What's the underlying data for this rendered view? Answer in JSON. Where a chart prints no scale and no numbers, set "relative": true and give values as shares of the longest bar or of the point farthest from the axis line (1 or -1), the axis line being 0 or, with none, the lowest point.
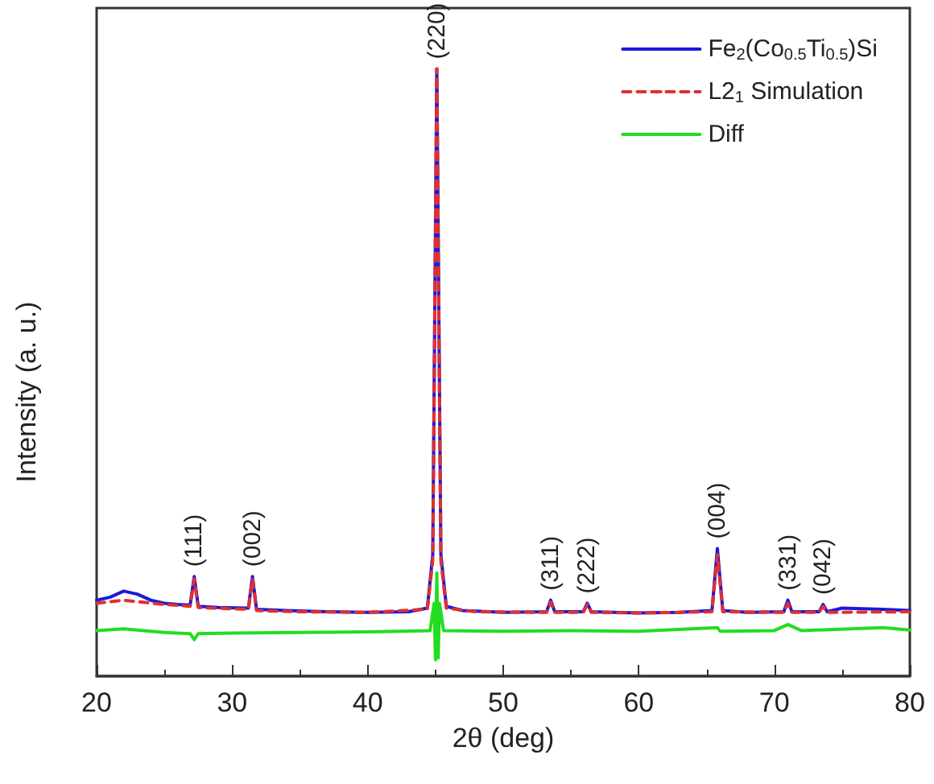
{
  "chart_data": {
    "type": "line",
    "relative": true,
    "xlabel": "2θ (deg)",
    "ylabel": "Intensity (a. u.)",
    "xlim": [
      20,
      80
    ],
    "xticks": [
      20,
      30,
      40,
      50,
      60,
      70,
      80
    ],
    "tick_labels": "x",
    "grid": false,
    "legend": "top right",
    "marker": "none",
    "series": [
      {
        "name": "Fe$_{2}$(Co$_{0.5}$Ti$_{0.5}$)Si",
        "color": "#1a1adc",
        "line_style": "solid",
        "x": [
          20,
          21,
          22,
          23,
          24,
          25,
          26,
          26.9,
          27.2,
          27.5,
          29,
          31.2,
          31.5,
          31.8,
          34,
          37,
          40,
          43,
          44.4,
          44.8,
          45.1,
          45.4,
          45.8,
          47,
          50,
          53.2,
          53.5,
          53.8,
          55.9,
          56.2,
          56.5,
          60,
          63,
          65.4,
          65.8,
          66.2,
          68,
          70.7,
          71,
          71.3,
          73.3,
          73.6,
          73.9,
          75,
          78,
          80
        ],
        "values": [
          0.125,
          0.13,
          0.14,
          0.135,
          0.125,
          0.12,
          0.118,
          0.117,
          0.164,
          0.115,
          0.113,
          0.112,
          0.164,
          0.11,
          0.108,
          0.106,
          0.105,
          0.106,
          0.112,
          0.2,
          1.0,
          0.2,
          0.115,
          0.108,
          0.105,
          0.106,
          0.125,
          0.106,
          0.106,
          0.12,
          0.106,
          0.104,
          0.105,
          0.108,
          0.21,
          0.108,
          0.105,
          0.106,
          0.125,
          0.106,
          0.106,
          0.118,
          0.106,
          0.112,
          0.11,
          0.108
        ]
      },
      {
        "name": "L2$_{1}$ Simulation",
        "color": "#e03030",
        "line_style": "dashed",
        "x": [
          20,
          22,
          25,
          26.9,
          27.2,
          27.5,
          31.2,
          31.5,
          31.8,
          35,
          40,
          44.4,
          44.8,
          45.1,
          45.4,
          45.8,
          48,
          53.2,
          53.5,
          53.8,
          55.9,
          56.2,
          56.5,
          60,
          65.4,
          65.8,
          66.2,
          70.7,
          71,
          71.3,
          73.3,
          73.6,
          73.9,
          80
        ],
        "values": [
          0.12,
          0.125,
          0.118,
          0.115,
          0.16,
          0.113,
          0.11,
          0.16,
          0.108,
          0.106,
          0.105,
          0.11,
          0.19,
          1.0,
          0.19,
          0.112,
          0.106,
          0.105,
          0.122,
          0.105,
          0.105,
          0.118,
          0.105,
          0.104,
          0.106,
          0.2,
          0.106,
          0.105,
          0.12,
          0.105,
          0.105,
          0.115,
          0.105,
          0.106
        ]
      },
      {
        "name": "Diff",
        "color": "#22dd22",
        "line_style": "solid",
        "x": [
          20,
          22,
          25,
          26.9,
          27.2,
          27.5,
          30,
          35,
          40,
          44.6,
          44.9,
          45.0,
          45.1,
          45.2,
          45.3,
          45.6,
          50,
          55,
          60,
          65.8,
          66,
          70,
          71,
          72,
          78,
          80
        ],
        "values": [
          0.075,
          0.078,
          0.072,
          0.07,
          0.06,
          0.07,
          0.071,
          0.072,
          0.073,
          0.075,
          0.12,
          0.027,
          0.17,
          0.03,
          0.12,
          0.075,
          0.074,
          0.075,
          0.074,
          0.08,
          0.074,
          0.075,
          0.085,
          0.075,
          0.08,
          0.076
        ]
      }
    ],
    "annotations": [
      {
        "text": "(111)",
        "x": 27.2,
        "y": 0.164
      },
      {
        "text": "(002)",
        "x": 31.5,
        "y": 0.164
      },
      {
        "text": "(220)",
        "x": 45.1,
        "y": 1.0
      },
      {
        "text": "(311)",
        "x": 53.5,
        "y": 0.125
      },
      {
        "text": "(222)",
        "x": 56.2,
        "y": 0.12
      },
      {
        "text": "(004)",
        "x": 65.8,
        "y": 0.21
      },
      {
        "text": "(331)",
        "x": 71,
        "y": 0.125
      },
      {
        "text": "(042)",
        "x": 73.6,
        "y": 0.118
      }
    ]
  }
}
